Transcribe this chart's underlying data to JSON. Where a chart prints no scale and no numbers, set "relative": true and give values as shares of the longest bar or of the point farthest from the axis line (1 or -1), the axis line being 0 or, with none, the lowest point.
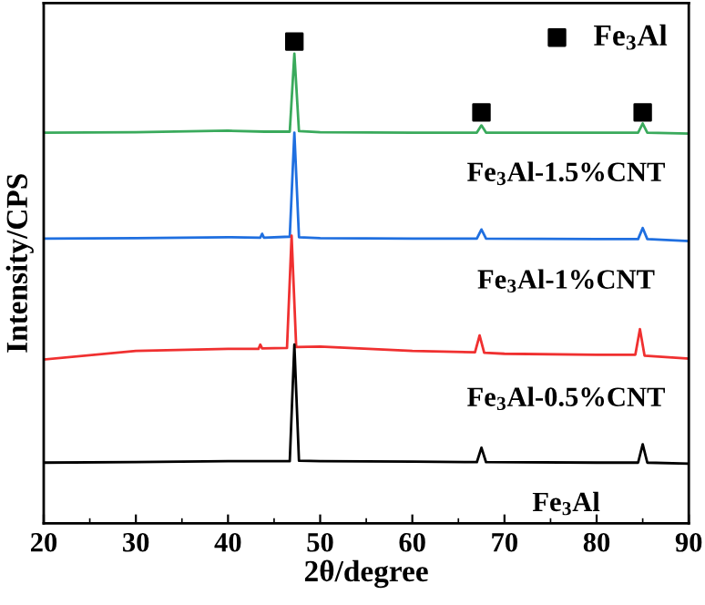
{
  "chart_data": {
    "type": "line",
    "relative": true,
    "xlabel": "2θ/degree",
    "ylabel": "Intensity/CPS",
    "xlim": [
      20,
      90
    ],
    "xticks": [
      20,
      30,
      40,
      50,
      60,
      70,
      80,
      90
    ],
    "grid": false,
    "legend": "top right",
    "line_style": "solid",
    "series": [
      {
        "name": "Fe$_{3}$Al-1.5%CNT",
        "color": "#3aaa5c",
        "x": [
          20,
          30,
          40,
          44,
          46.7,
          47.2,
          47.7,
          50,
          60,
          67,
          67.5,
          68,
          80,
          84.5,
          85,
          85.5,
          90
        ],
        "values": [
          0.811,
          0.812,
          0.815,
          0.813,
          0.813,
          0.975,
          0.814,
          0.812,
          0.811,
          0.811,
          0.826,
          0.811,
          0.811,
          0.811,
          0.83,
          0.811,
          0.809
        ]
      },
      {
        "name": "Fe$_{3}$Al-1%CNT",
        "color": "#1f6fe0",
        "x": [
          20,
          30,
          40,
          43.5,
          43.7,
          43.9,
          46.7,
          47.2,
          47.7,
          50,
          60,
          67,
          67.5,
          68,
          80,
          84.5,
          85,
          85.5,
          90
        ],
        "values": [
          0.591,
          0.592,
          0.594,
          0.593,
          0.601,
          0.593,
          0.595,
          0.811,
          0.594,
          0.592,
          0.591,
          0.591,
          0.61,
          0.591,
          0.59,
          0.59,
          0.613,
          0.59,
          0.586
        ]
      },
      {
        "name": "Fe$_{3}$Al-0.5%CNT",
        "color": "#f03030",
        "x": [
          20,
          30,
          40,
          43.3,
          43.5,
          43.7,
          46.4,
          46.9,
          47.4,
          50,
          60,
          66.8,
          67.3,
          67.8,
          70,
          80,
          84.2,
          84.7,
          85.2,
          90
        ],
        "values": [
          0.34,
          0.358,
          0.362,
          0.362,
          0.371,
          0.363,
          0.364,
          0.597,
          0.366,
          0.367,
          0.358,
          0.355,
          0.39,
          0.354,
          0.352,
          0.35,
          0.35,
          0.403,
          0.348,
          0.342
        ]
      },
      {
        "name": "Fe$_{3}$Al",
        "color": "#000000",
        "x": [
          20,
          30,
          40,
          46.7,
          47.2,
          47.7,
          50,
          60,
          67,
          67.5,
          68,
          80,
          84.5,
          85,
          85.5,
          90
        ],
        "values": [
          0.126,
          0.127,
          0.129,
          0.129,
          0.371,
          0.13,
          0.129,
          0.128,
          0.127,
          0.157,
          0.127,
          0.126,
          0.126,
          0.164,
          0.126,
          0.124
        ]
      },
      {
        "name": "Fe$_{3}$Al",
        "type": "scatter",
        "marker": "square",
        "color": "#000000",
        "x": [
          47.2,
          67.5,
          85
        ],
        "values": [
          1.0,
          0.853,
          0.853
        ]
      }
    ]
  }
}
